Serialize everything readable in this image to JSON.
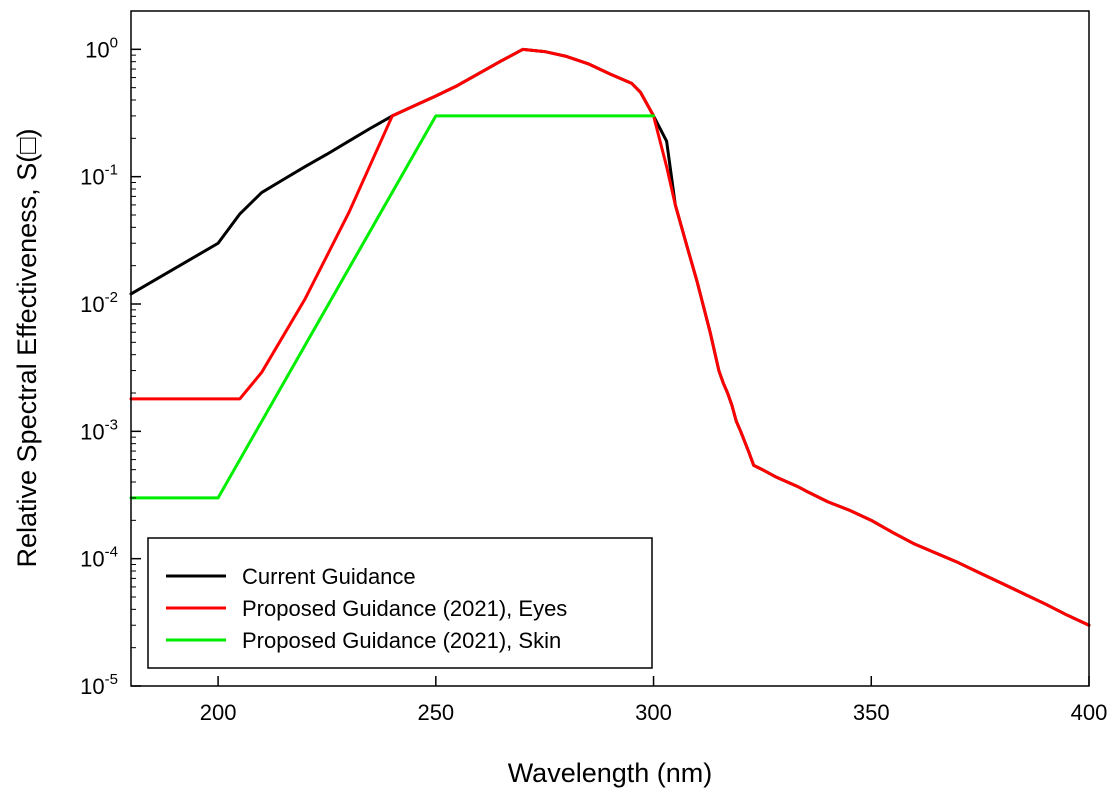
{
  "chart_data": {
    "type": "line",
    "xlabel": "Wavelength (nm)",
    "ylabel": "Relative Spectral Effectiveness, S(□)",
    "xlim": [
      180,
      400
    ],
    "ylim": [
      1e-05,
      2
    ],
    "yscale": "log",
    "grid": false,
    "legend_position": "bottom-left",
    "x_ticks": [
      {
        "value": 200,
        "label": "200"
      },
      {
        "value": 250,
        "label": "250"
      },
      {
        "value": 300,
        "label": "300"
      },
      {
        "value": 350,
        "label": "350"
      },
      {
        "value": 400,
        "label": "400"
      }
    ],
    "y_ticks": [
      {
        "value": 1,
        "base": "10",
        "exp": "0"
      },
      {
        "value": 0.1,
        "base": "10",
        "exp": "-1"
      },
      {
        "value": 0.01,
        "base": "10",
        "exp": "-2"
      },
      {
        "value": 0.001,
        "base": "10",
        "exp": "-3"
      },
      {
        "value": 0.0001,
        "base": "10",
        "exp": "-4"
      },
      {
        "value": 1e-05,
        "base": "10",
        "exp": "-5"
      }
    ],
    "series": [
      {
        "name": "Current Guidance",
        "color": "#000000",
        "x": [
          180,
          200,
          205,
          210,
          215,
          220,
          225,
          230,
          235,
          240,
          245,
          250,
          255,
          260,
          265,
          270,
          275,
          280,
          285,
          290,
          295,
          297,
          300,
          303,
          305,
          308,
          310,
          313,
          315,
          316,
          317,
          318,
          319,
          320,
          322,
          323,
          325,
          328,
          330,
          333,
          335,
          340,
          345,
          350,
          355,
          360,
          365,
          370,
          375,
          380,
          385,
          390,
          395,
          400
        ],
        "y": [
          0.012,
          0.03,
          0.051,
          0.075,
          0.095,
          0.12,
          0.15,
          0.19,
          0.24,
          0.3,
          0.36,
          0.43,
          0.52,
          0.65,
          0.81,
          1.0,
          0.96,
          0.88,
          0.77,
          0.64,
          0.54,
          0.46,
          0.3,
          0.19,
          0.06,
          0.026,
          0.015,
          0.006,
          0.003,
          0.0024,
          0.002,
          0.0016,
          0.0012,
          0.001,
          0.00067,
          0.00054,
          0.0005,
          0.00044,
          0.00041,
          0.00037,
          0.00034,
          0.00028,
          0.00024,
          0.0002,
          0.00016,
          0.00013,
          0.00011,
          9.3e-05,
          7.7e-05,
          6.4e-05,
          5.3e-05,
          4.4e-05,
          3.6e-05,
          3e-05
        ]
      },
      {
        "name": "Proposed Guidance (2021), Eyes",
        "color": "#ff0000",
        "x": [
          180,
          200,
          205,
          210,
          220,
          230,
          240,
          245,
          250,
          255,
          260,
          265,
          270,
          275,
          280,
          285,
          290,
          295,
          297,
          300,
          303,
          305,
          308,
          310,
          313,
          315,
          316,
          317,
          318,
          319,
          320,
          322,
          323,
          325,
          328,
          330,
          333,
          335,
          340,
          345,
          350,
          355,
          360,
          365,
          370,
          375,
          380,
          385,
          390,
          395,
          400
        ],
        "y": [
          0.0018,
          0.0018,
          0.0018,
          0.0029,
          0.011,
          0.052,
          0.3,
          0.36,
          0.43,
          0.52,
          0.65,
          0.81,
          1.0,
          0.96,
          0.88,
          0.77,
          0.64,
          0.54,
          0.46,
          0.3,
          0.12,
          0.06,
          0.026,
          0.015,
          0.006,
          0.003,
          0.0024,
          0.002,
          0.0016,
          0.0012,
          0.001,
          0.00067,
          0.00054,
          0.0005,
          0.00044,
          0.00041,
          0.00037,
          0.00034,
          0.00028,
          0.00024,
          0.0002,
          0.00016,
          0.00013,
          0.00011,
          9.3e-05,
          7.7e-05,
          6.4e-05,
          5.3e-05,
          4.4e-05,
          3.6e-05,
          3e-05
        ]
      },
      {
        "name": "Proposed Guidance (2021), Skin",
        "color": "#00ee00",
        "x": [
          180,
          200,
          250,
          300
        ],
        "y": [
          0.0003,
          0.0003,
          0.3,
          0.3
        ]
      }
    ]
  }
}
